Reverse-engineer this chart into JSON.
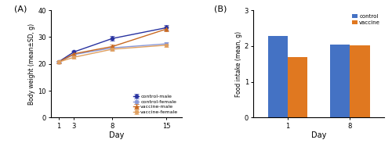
{
  "panel_a": {
    "days": [
      1,
      3,
      8,
      15
    ],
    "control_male": [
      20.8,
      24.5,
      29.5,
      33.5
    ],
    "control_female": [
      20.7,
      23.5,
      26.0,
      27.5
    ],
    "vaccine_male": [
      20.7,
      23.8,
      26.5,
      33.0
    ],
    "vaccine_female": [
      20.7,
      22.5,
      25.5,
      27.0
    ],
    "control_male_err": [
      0.4,
      0.5,
      0.8,
      0.9
    ],
    "control_female_err": [
      0.4,
      0.4,
      0.7,
      0.6
    ],
    "vaccine_male_err": [
      0.4,
      0.5,
      0.7,
      0.8
    ],
    "vaccine_female_err": [
      0.4,
      0.4,
      0.6,
      0.6
    ],
    "color_control_male": "#2832a0",
    "color_control_female": "#8898d8",
    "color_vaccine_male": "#c86820",
    "color_vaccine_female": "#e0a060",
    "ylabel": "Body weight (mean±SD, g)",
    "xlabel": "Day",
    "ylim": [
      0,
      40
    ],
    "yticks": [
      0,
      10,
      20,
      30,
      40
    ],
    "title": "(A)"
  },
  "panel_b": {
    "days": [
      1,
      8
    ],
    "control": [
      2.28,
      2.05
    ],
    "vaccine": [
      1.7,
      2.01
    ],
    "color_control": "#4472c4",
    "color_vaccine": "#e07820",
    "ylabel": "Food intake (mean, g)",
    "xlabel": "Day",
    "ylim": [
      0,
      3
    ],
    "yticks": [
      0,
      1,
      2,
      3
    ],
    "title": "(B)",
    "legend_labels": [
      "control",
      "vaccine"
    ]
  }
}
